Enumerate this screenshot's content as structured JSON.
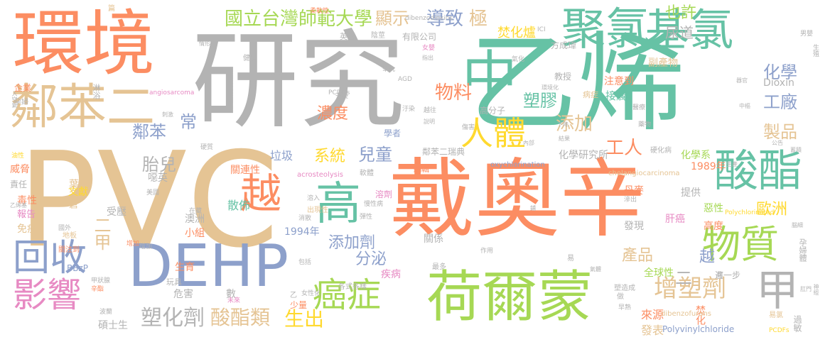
{
  "palette": {
    "orange": "#fc8d62",
    "green": "#66c2a5",
    "blue": "#8da0cb",
    "pink": "#e78ac3",
    "lime": "#a6d854",
    "yellow": "#ffd92f",
    "tan": "#e5c494",
    "gray": "#b3b3b3"
  },
  "words": [
    {
      "text": "戴奧辛",
      "color": "orange"
    },
    {
      "text": "研究",
      "color": "gray"
    },
    {
      "text": "乙烯",
      "color": "green"
    },
    {
      "text": "PVC",
      "color": "tan"
    },
    {
      "text": "環境",
      "color": "orange"
    },
    {
      "text": "荷爾蒙",
      "color": "lime"
    },
    {
      "text": "DEHP",
      "color": "blue"
    },
    {
      "text": "中",
      "color": "green"
    },
    {
      "text": "鄰苯二",
      "color": "tan"
    },
    {
      "text": "聚氯",
      "color": "green"
    },
    {
      "text": "基氯",
      "color": "green"
    },
    {
      "text": "高",
      "color": "green"
    },
    {
      "text": "酸酯",
      "color": "green"
    },
    {
      "text": "物質",
      "color": "lime"
    },
    {
      "text": "人體",
      "color": "yellow"
    },
    {
      "text": "甲",
      "color": "gray"
    },
    {
      "text": "回收",
      "color": "blue"
    },
    {
      "text": "影響",
      "color": "pink"
    },
    {
      "text": "癌症",
      "color": "lime"
    },
    {
      "text": "越",
      "color": "orange"
    },
    {
      "text": "增塑劑",
      "color": "tan"
    },
    {
      "text": "塑化劑",
      "color": "gray"
    },
    {
      "text": "酸酯類",
      "color": "tan"
    },
    {
      "text": "生出",
      "color": "yellow"
    },
    {
      "text": "國立台灣師範大學",
      "color": "lime"
    },
    {
      "text": "顯示",
      "color": "tan"
    },
    {
      "text": "導致",
      "color": "blue"
    },
    {
      "text": "極",
      "color": "tan"
    },
    {
      "text": "也許",
      "color": "lime"
    },
    {
      "text": "尿道",
      "color": "gray"
    },
    {
      "text": "焚化爐",
      "color": "yellow"
    },
    {
      "text": "物料",
      "color": "orange"
    },
    {
      "text": "塑膠",
      "color": "green"
    },
    {
      "text": "添加",
      "color": "tan"
    },
    {
      "text": "濃度",
      "color": "orange"
    },
    {
      "text": "化學",
      "color": "blue"
    },
    {
      "text": "工廠",
      "color": "blue"
    },
    {
      "text": "製品",
      "color": "tan"
    },
    {
      "text": "工人",
      "color": "orange"
    },
    {
      "text": "鄰苯",
      "color": "blue"
    },
    {
      "text": "常",
      "color": "blue"
    },
    {
      "text": "胎兒",
      "color": "gray"
    },
    {
      "text": "系統",
      "color": "yellow"
    },
    {
      "text": "兒童",
      "color": "blue"
    },
    {
      "text": "二甲",
      "color": "tan"
    },
    {
      "text": "添加劑",
      "color": "blue"
    },
    {
      "text": "分泌",
      "color": "blue"
    },
    {
      "text": "歐洲",
      "color": "yellow"
    },
    {
      "text": "產品",
      "color": "tan"
    },
    {
      "text": "越",
      "color": "blue"
    },
    {
      "text": "二",
      "color": "gray"
    },
    {
      "text": "接觸",
      "color": "green"
    },
    {
      "text": "病症",
      "color": "tan"
    },
    {
      "text": "教授",
      "color": "gray"
    },
    {
      "text": "注意到",
      "color": "orange"
    },
    {
      "text": "副產物",
      "color": "tan"
    },
    {
      "text": "方成瑋",
      "color": "gray"
    },
    {
      "text": "Dioxin",
      "color": "gray"
    },
    {
      "text": "高分子",
      "color": "gray"
    },
    {
      "text": "化學研究所",
      "color": "gray"
    },
    {
      "text": "化學系",
      "color": "lime"
    },
    {
      "text": "硬化病",
      "color": "gray"
    },
    {
      "text": "鄰苯二瑞典",
      "color": "gray"
    },
    {
      "text": "編輯",
      "color": "orange"
    },
    {
      "text": "學者",
      "color": "blue"
    },
    {
      "text": "關連性",
      "color": "orange"
    },
    {
      "text": "垃圾",
      "color": "blue"
    },
    {
      "text": "威脅",
      "color": "orange"
    },
    {
      "text": "責任",
      "color": "gray"
    },
    {
      "text": "葉名倉",
      "color": "tan"
    },
    {
      "text": "文獻",
      "color": "yellow"
    },
    {
      "text": "噁英",
      "color": "gray"
    },
    {
      "text": "毒性",
      "color": "orange"
    },
    {
      "text": "報告",
      "color": "pink"
    },
    {
      "text": "免疫",
      "color": "tan"
    },
    {
      "text": "散佈",
      "color": "green"
    },
    {
      "text": "澳洲",
      "color": "gray"
    },
    {
      "text": "小組",
      "color": "orange"
    },
    {
      "text": "受壓",
      "color": "gray"
    },
    {
      "text": "1994年",
      "color": "blue"
    },
    {
      "text": "1989年",
      "color": "orange"
    },
    {
      "text": "丹麥",
      "color": "orange"
    },
    {
      "text": "提供",
      "color": "gray"
    },
    {
      "text": "惡性",
      "color": "lime"
    },
    {
      "text": "肝癌",
      "color": "pink"
    },
    {
      "text": "關係",
      "color": "gray"
    },
    {
      "text": "發現",
      "color": "gray"
    },
    {
      "text": "高度",
      "color": "orange"
    },
    {
      "text": "全球性",
      "color": "lime"
    },
    {
      "text": "焚化",
      "color": "orange"
    },
    {
      "text": "進一步",
      "color": "gray"
    },
    {
      "text": "來源",
      "color": "orange"
    },
    {
      "text": "發表",
      "color": "tan"
    },
    {
      "text": "Polyvinylchloride",
      "color": "blue"
    },
    {
      "text": "dibenzofurans",
      "color": "tan"
    },
    {
      "text": "過敏",
      "color": "gray"
    },
    {
      "text": "PCDFs",
      "color": "yellow"
    },
    {
      "text": "疾病",
      "color": "pink"
    },
    {
      "text": "生育",
      "color": "orange"
    },
    {
      "text": "危害",
      "color": "gray"
    },
    {
      "text": "數",
      "color": "gray"
    },
    {
      "text": "乙",
      "color": "gray"
    },
    {
      "text": "少量",
      "color": "orange"
    },
    {
      "text": "碩士生",
      "color": "gray"
    },
    {
      "text": "BBzP",
      "color": "blue"
    },
    {
      "text": "地板",
      "color": "tan"
    },
    {
      "text": "關注到",
      "color": "orange"
    },
    {
      "text": "acrosteolysis",
      "color": "pink"
    },
    {
      "text": "oxychlorination",
      "color": "blue"
    },
    {
      "text": "cholangiocarcinoma",
      "color": "tan"
    },
    {
      "text": "Polychlorinated",
      "color": "yellow"
    },
    {
      "text": "angiosarcoma",
      "color": "pink"
    },
    {
      "text": "dibenzodioxins",
      "color": "gray"
    },
    {
      "text": "PCDDs",
      "color": "gray"
    },
    {
      "text": "ICI",
      "color": "gray"
    },
    {
      "text": "AGD",
      "color": "gray"
    },
    {
      "text": "英國",
      "color": "gray"
    },
    {
      "text": "陰莖",
      "color": "gray"
    },
    {
      "text": "有限公司",
      "color": "gray"
    },
    {
      "text": "健康",
      "color": "gray"
    },
    {
      "text": "企業",
      "color": "orange"
    },
    {
      "text": "淋浴",
      "color": "gray"
    },
    {
      "text": "篇",
      "color": "tan"
    },
    {
      "text": "男嬰",
      "color": "gray"
    },
    {
      "text": "孕婦",
      "color": "gray"
    },
    {
      "text": "孕婦體",
      "color": "gray"
    },
    {
      "text": "肛門",
      "color": "gray"
    },
    {
      "text": "作用",
      "color": "gray"
    },
    {
      "text": "溶入",
      "color": "gray"
    },
    {
      "text": "溶劑",
      "color": "pink"
    },
    {
      "text": "出現性",
      "color": "tan"
    },
    {
      "text": "慢性病",
      "color": "gray"
    },
    {
      "text": "彈性",
      "color": "gray"
    },
    {
      "text": "軟體",
      "color": "gray"
    },
    {
      "text": "干擾",
      "color": "gray"
    },
    {
      "text": "氣化",
      "color": "gray"
    },
    {
      "text": "女嬰",
      "color": "pink"
    },
    {
      "text": "睾丸",
      "color": "gray"
    },
    {
      "text": "增加",
      "color": "orange"
    },
    {
      "text": "最多",
      "color": "gray"
    },
    {
      "text": "各式各樣",
      "color": "gray"
    },
    {
      "text": "玩具",
      "color": "gray"
    },
    {
      "text": "甲狀腺",
      "color": "gray"
    },
    {
      "text": "辛酯",
      "color": "orange"
    },
    {
      "text": "波蘭",
      "color": "gray"
    },
    {
      "text": "女性化",
      "color": "gray"
    },
    {
      "text": "包括",
      "color": "gray"
    },
    {
      "text": "消散",
      "color": "gray"
    },
    {
      "text": "硬質",
      "color": "gray"
    },
    {
      "text": "油性",
      "color": "yellow"
    },
    {
      "text": "乙烯基",
      "color": "gray"
    },
    {
      "text": "蓄積",
      "color": "gray"
    },
    {
      "text": "生殖",
      "color": "gray"
    },
    {
      "text": "神經",
      "color": "gray"
    },
    {
      "text": "腦細",
      "color": "gray"
    },
    {
      "text": "藥物",
      "color": "gray"
    },
    {
      "text": "醫療",
      "color": "gray"
    },
    {
      "text": "易",
      "color": "gray"
    },
    {
      "text": "易氯",
      "color": "tan"
    },
    {
      "text": "做",
      "color": "gray"
    },
    {
      "text": "早熟",
      "color": "gray"
    },
    {
      "text": "塑造成",
      "color": "gray"
    },
    {
      "text": "在藏",
      "color": "gray"
    },
    {
      "text": "美國",
      "color": "gray"
    },
    {
      "text": "國外",
      "color": "gray"
    },
    {
      "text": "增加",
      "color": "gray"
    },
    {
      "text": "可",
      "color": "gray"
    },
    {
      "text": "滲出",
      "color": "gray"
    },
    {
      "text": "指出",
      "color": "gray"
    },
    {
      "text": "結果",
      "color": "gray"
    },
    {
      "text": "下降",
      "color": "gray"
    },
    {
      "text": "中樞",
      "color": "gray"
    },
    {
      "text": "內部",
      "color": "gray"
    },
    {
      "text": "生產",
      "color": "gray"
    },
    {
      "text": "公告",
      "color": "gray"
    },
    {
      "text": "入空氣",
      "color": "gray"
    },
    {
      "text": "柔軟性",
      "color": "orange"
    },
    {
      "text": "情形",
      "color": "gray"
    },
    {
      "text": "傾向",
      "color": "gray"
    },
    {
      "text": "越往",
      "color": "gray"
    },
    {
      "text": "汙染",
      "color": "gray"
    },
    {
      "text": "傷害",
      "color": "gray"
    },
    {
      "text": "器官",
      "color": "gray"
    },
    {
      "text": "說明",
      "color": "gray"
    },
    {
      "text": "刺激",
      "color": "gray"
    },
    {
      "text": "未來",
      "color": "pink"
    },
    {
      "text": "氣體",
      "color": "gray"
    },
    {
      "text": "鋪",
      "color": "gray"
    },
    {
      "text": "環境化",
      "color": "gray"
    }
  ]
}
